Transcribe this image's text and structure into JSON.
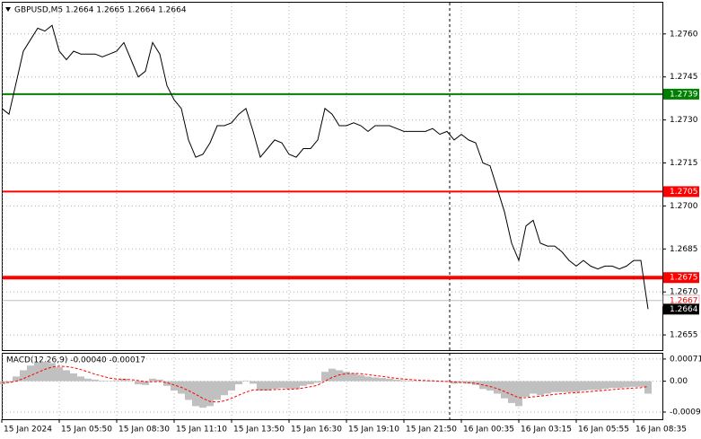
{
  "chart_data": [
    {
      "type": "line",
      "title": "GBPUSD,M5  1.2664 1.2665 1.2664 1.2664",
      "color": "#000000",
      "grid": true,
      "values": [
        1.2734,
        1.2732,
        1.2743,
        1.2754,
        1.2758,
        1.2762,
        1.2761,
        1.2763,
        1.2754,
        1.2751,
        1.2754,
        1.2753,
        1.2753,
        1.2753,
        1.2752,
        1.2753,
        1.2754,
        1.2757,
        1.2751,
        1.2745,
        1.2747,
        1.2757,
        1.2753,
        1.2742,
        1.2737,
        1.2734,
        1.2723,
        1.2717,
        1.2718,
        1.2722,
        1.2728,
        1.2728,
        1.2729,
        1.2732,
        1.2734,
        1.2726,
        1.2717,
        1.272,
        1.2723,
        1.2722,
        1.2718,
        1.2717,
        1.272,
        1.272,
        1.2723,
        1.2734,
        1.2732,
        1.2728,
        1.2728,
        1.2729,
        1.2728,
        1.2726,
        1.2728,
        1.2728,
        1.2728,
        1.2727,
        1.2726,
        1.2726,
        1.2726,
        1.2726,
        1.2727,
        1.2725,
        1.2726,
        1.2723,
        1.2725,
        1.2723,
        1.2722,
        1.2715,
        1.2714,
        1.2706,
        1.2698,
        1.2687,
        1.2681,
        1.2693,
        1.2695,
        1.2687,
        1.2686,
        1.2686,
        1.2684,
        1.2681,
        1.2679,
        1.2681,
        1.2679,
        1.2678,
        1.2679,
        1.2679,
        1.2678,
        1.2679,
        1.2681,
        1.2681,
        1.2664
      ],
      "x_labels": [
        "15 Jan 2024",
        "15 Jan 05:50",
        "15 Jan 08:30",
        "15 Jan 11:10",
        "15 Jan 13:50",
        "15 Jan 16:30",
        "15 Jan 19:10",
        "15 Jan 21:50",
        "16 Jan 00:35",
        "16 Jan 03:15",
        "16 Jan 05:55",
        "16 Jan 08:35"
      ],
      "ylim": [
        1.26497,
        1.27709
      ],
      "yticks": [
        {
          "value": 1.276,
          "label": "1.2760"
        },
        1.2745,
        {
          "value": 1.273,
          "label": "1.2730"
        },
        1.2715,
        {
          "value": 1.27,
          "label": "1.2700"
        },
        1.2685,
        {
          "value": 1.267,
          "label": "1.2670"
        },
        1.2655
      ],
      "levels": [
        {
          "value": 1.2739,
          "color": "#008000"
        },
        {
          "value": 1.2705,
          "color": "#ff0000"
        },
        {
          "value": 1.2675,
          "color": "#ff0000"
        }
      ],
      "ask": 1.2667,
      "last": 1.2664
    },
    {
      "type": "macd",
      "title": "MACD(12,26,9) -0.00040 -0.00017",
      "grid": true,
      "ylim": [
        -0.00122,
        0.00088
      ],
      "yticks": [
        0.00071,
        {
          "value": 0,
          "label": "0.00"
        },
        -0.00099
      ],
      "histogram": {
        "color": "#c0c0c0",
        "values": [
          -0.0001,
          -5e-05,
          0.00015,
          0.00035,
          0.0005,
          0.0006,
          0.00062,
          0.00058,
          0.00045,
          0.00035,
          0.00025,
          0.00015,
          8e-05,
          5e-05,
          2e-05,
          0,
          3e-05,
          8e-05,
          0,
          -0.0001,
          -0.00012,
          8e-05,
          5e-05,
          -0.00015,
          -0.0003,
          -0.0004,
          -0.0006,
          -0.0008,
          -0.00085,
          -0.0008,
          -0.0006,
          -0.00045,
          -0.0003,
          -0.0001,
          2e-05,
          -8e-05,
          -0.0003,
          -0.0003,
          -0.00025,
          -0.00022,
          -0.00025,
          -0.00025,
          -0.00015,
          -0.0001,
          -5e-05,
          0.0003,
          0.0004,
          0.00035,
          0.0003,
          0.00025,
          0.0002,
          0.00015,
          0.00012,
          0.0001,
          8e-05,
          5e-05,
          3e-05,
          2e-05,
          0,
          0,
          2e-05,
          -2e-05,
          -2e-05,
          -8e-05,
          -5e-05,
          -8e-05,
          -0.00012,
          -0.00025,
          -0.0003,
          -0.0004,
          -0.00055,
          -0.0007,
          -0.0008,
          -0.0005,
          -0.0004,
          -0.00045,
          -0.0004,
          -0.00035,
          -0.00035,
          -0.00035,
          -0.00035,
          -0.0003,
          -0.00028,
          -0.00028,
          -0.00025,
          -0.00022,
          -0.00022,
          -0.0002,
          -0.00018,
          -0.00018,
          -0.0004
        ]
      },
      "signal": {
        "color": "#ff0000",
        "values": [
          -5e-05,
          -4e-05,
          0,
          8e-05,
          0.00018,
          0.00028,
          0.00038,
          0.00045,
          0.00048,
          0.00047,
          0.00043,
          0.00037,
          0.0003,
          0.00022,
          0.00016,
          0.0001,
          7e-05,
          6e-05,
          5e-05,
          2e-05,
          -2e-05,
          -2e-05,
          -1e-05,
          -5e-05,
          -0.00012,
          -0.0002,
          -0.0003,
          -0.00042,
          -0.00055,
          -0.00065,
          -0.00067,
          -0.00063,
          -0.00055,
          -0.00045,
          -0.00035,
          -0.00028,
          -0.00028,
          -0.00028,
          -0.00027,
          -0.00026,
          -0.00026,
          -0.00025,
          -0.00022,
          -0.00018,
          -0.00013,
          0,
          0.00012,
          0.0002,
          0.00024,
          0.00025,
          0.00024,
          0.00021,
          0.00018,
          0.00015,
          0.00012,
          9e-05,
          7e-05,
          5e-05,
          3e-05,
          2e-05,
          1e-05,
          0,
          -1e-05,
          -3e-05,
          -4e-05,
          -5e-05,
          -7e-05,
          -0.00012,
          -0.00017,
          -0.00024,
          -0.00033,
          -0.00043,
          -0.00053,
          -0.00053,
          -0.0005,
          -0.00048,
          -0.00045,
          -0.00042,
          -0.0004,
          -0.00038,
          -0.00037,
          -0.00035,
          -0.00033,
          -0.00031,
          -0.00029,
          -0.00027,
          -0.00025,
          -0.00024,
          -0.00022,
          -0.00021,
          -0.00017
        ]
      }
    }
  ]
}
